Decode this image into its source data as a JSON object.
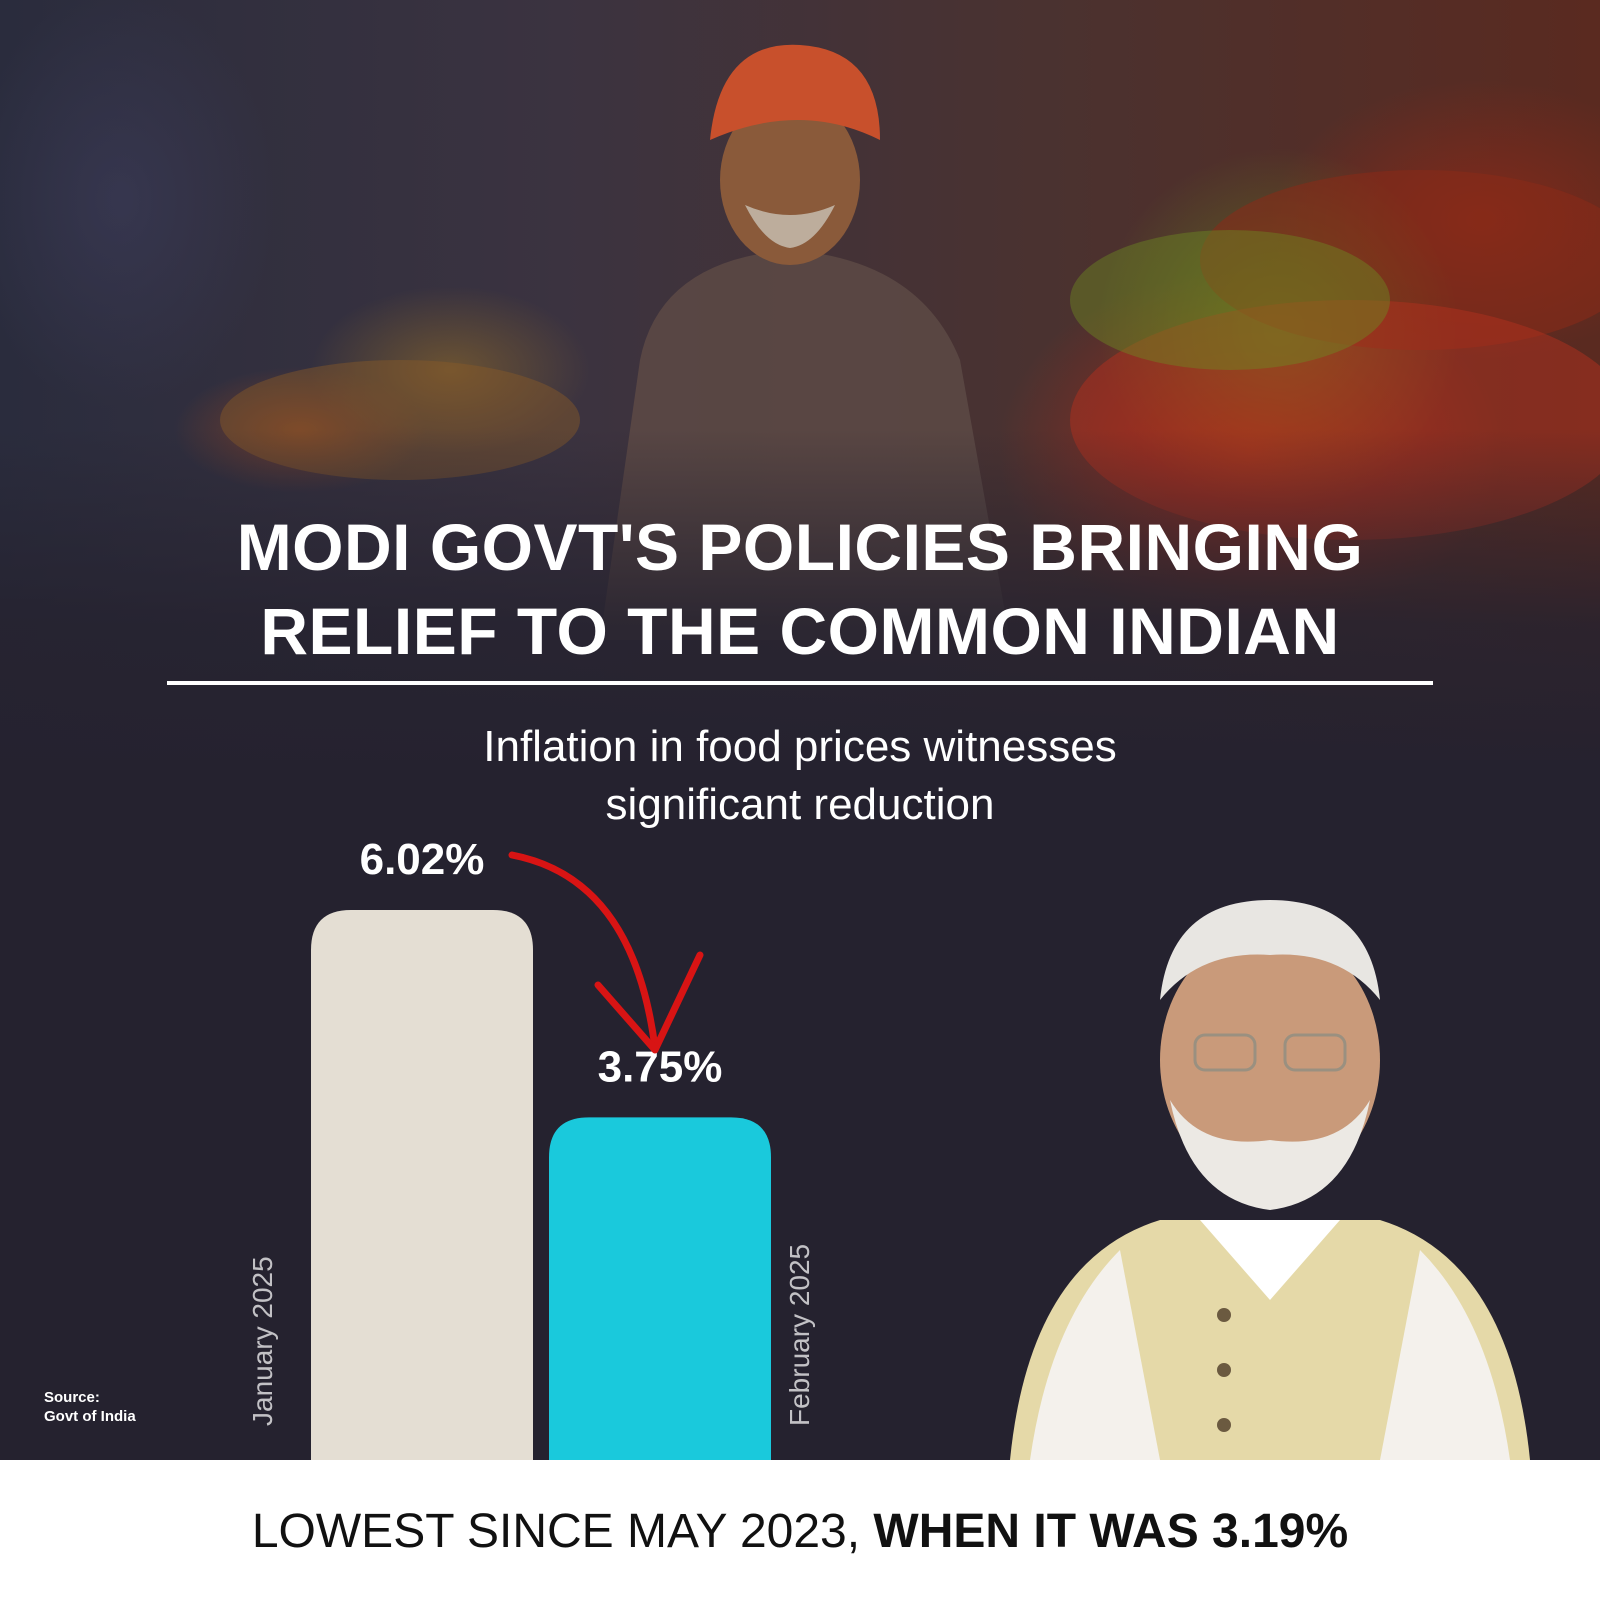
{
  "headline": {
    "line1": "MODI GOVT'S POLICIES BRINGING",
    "line2": "RELIEF TO THE COMMON INDIAN"
  },
  "subtitle": {
    "line1": "Inflation in food prices witnesses",
    "line2": "significant reduction"
  },
  "source": {
    "label": "Source:",
    "value": "Govt of India"
  },
  "footer": {
    "regular": "LOWEST SINCE MAY 2023, ",
    "bold": "WHEN IT WAS 3.19%"
  },
  "colors": {
    "background": "#25222f",
    "jan_bar": "#f4efe2",
    "feb_bar": "#19d3e6",
    "arrow": "#d81414"
  },
  "chart_data": {
    "type": "bar",
    "categories": [
      "January 2025",
      "February 2025"
    ],
    "values": [
      6.02,
      3.75
    ],
    "value_labels": [
      "6.02%",
      "3.75%"
    ],
    "unit": "%",
    "title": "Inflation in food prices witnesses significant reduction",
    "xlabel": "",
    "ylabel": "",
    "grid": false,
    "annotation": "downward red arrow from January to February"
  }
}
